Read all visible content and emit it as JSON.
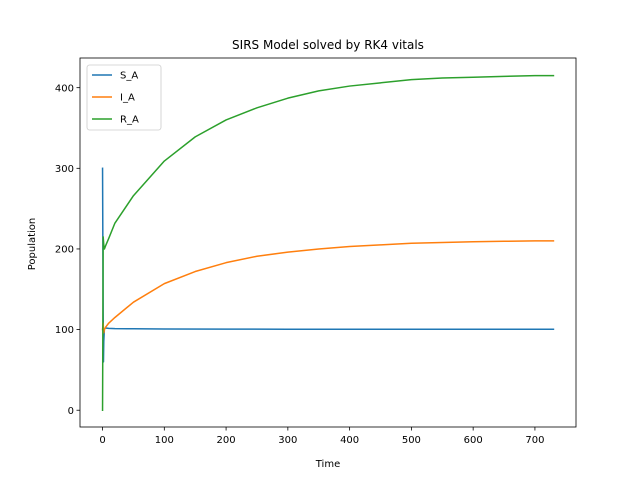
{
  "chart_data": {
    "type": "line",
    "title": "SIRS Model solved by RK4 vitals",
    "xlabel": "Time",
    "ylabel": "Population",
    "xlim": [
      -36.5,
      766.5
    ],
    "ylim": [
      -20.8,
      436.8
    ],
    "xticks": [
      0,
      100,
      200,
      300,
      400,
      500,
      600,
      700
    ],
    "yticks": [
      0,
      100,
      200,
      300,
      400
    ],
    "grid": false,
    "legend": "top-left",
    "series": [
      {
        "name": "S_A",
        "color": "#1f77b4",
        "x": [
          0,
          0.5,
          1,
          1.5,
          2,
          3,
          5,
          10,
          20,
          50,
          100,
          200,
          300,
          400,
          500,
          600,
          700,
          730
        ],
        "y": [
          300,
          210,
          120,
          60,
          85,
          101,
          102,
          101.5,
          101.2,
          101,
          100.7,
          100.6,
          100.5,
          100.5,
          100.5,
          100.5,
          100.5,
          100.5
        ]
      },
      {
        "name": "I_A",
        "color": "#ff7f0e",
        "x": [
          0,
          1,
          2,
          3,
          5,
          10,
          20,
          50,
          100,
          150,
          200,
          250,
          300,
          350,
          400,
          450,
          500,
          550,
          600,
          650,
          700,
          730
        ],
        "y": [
          100,
          108,
          96,
          100,
          103,
          108,
          115,
          134,
          157,
          172,
          183,
          191,
          196,
          200,
          203,
          205,
          207,
          208,
          209,
          209.5,
          210,
          210
        ]
      },
      {
        "name": "R_A",
        "color": "#2ca02c",
        "x": [
          0,
          0.5,
          1,
          2,
          3,
          5,
          10,
          20,
          50,
          100,
          150,
          200,
          250,
          300,
          350,
          400,
          450,
          500,
          550,
          600,
          650,
          700,
          730
        ],
        "y": [
          0,
          100,
          215,
          205,
          200,
          204,
          213,
          232,
          266,
          309,
          339,
          360,
          375,
          387,
          396,
          402,
          406,
          410,
          412,
          413,
          414,
          415,
          415
        ]
      }
    ]
  }
}
